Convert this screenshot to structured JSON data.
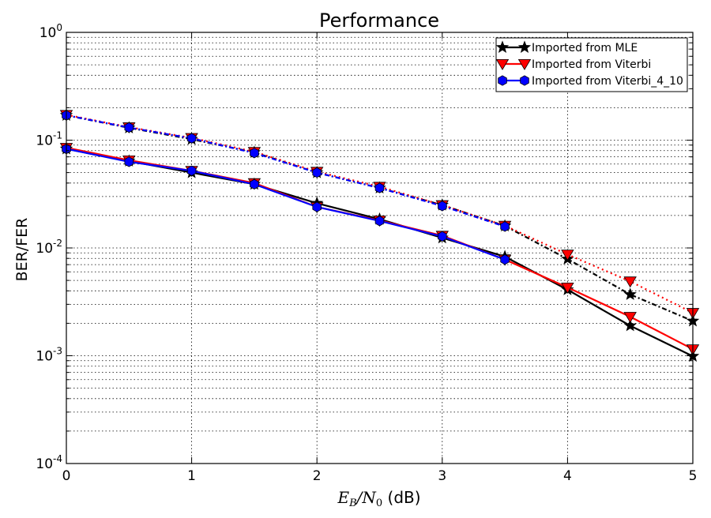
{
  "chart_data": {
    "type": "line",
    "title": "Performance",
    "ylabel": "BER/FER",
    "xlabel_parts": {
      "a": "E",
      "a_sub": "B",
      "slash": "/N",
      "b_sub": "0",
      "rest": " (dB)"
    },
    "x_ticks": [
      "0",
      "1",
      "2",
      "3",
      "4",
      "5"
    ],
    "y_ticks": [
      {
        "value": 0.0001,
        "base": "10",
        "exp": "-4"
      },
      {
        "value": 0.001,
        "base": "10",
        "exp": "-3"
      },
      {
        "value": 0.01,
        "base": "10",
        "exp": "-2"
      },
      {
        "value": 0.1,
        "base": "10",
        "exp": "-1"
      },
      {
        "value": 1,
        "base": "10",
        "exp": "0"
      }
    ],
    "xlim": [
      0,
      5
    ],
    "ylim": [
      0.0001,
      1
    ],
    "yscale": "log",
    "grid": true,
    "legend_position": "top-right",
    "x": [
      0,
      0.5,
      1,
      1.5,
      2,
      2.5,
      3,
      3.5,
      4,
      4.5,
      5
    ],
    "series": [
      {
        "name": "Imported from MLE",
        "color": "#000000",
        "marker": "star",
        "ber": [
          0.083,
          0.064,
          0.05,
          0.039,
          0.026,
          0.0185,
          0.0124,
          0.0083,
          0.0041,
          0.0019,
          0.00099
        ],
        "fer": [
          0.17,
          0.13,
          0.102,
          0.077,
          0.05,
          0.036,
          0.025,
          0.016,
          0.0079,
          0.0037,
          0.0021
        ]
      },
      {
        "name": "Imported from Viterbi",
        "color": "#ff0000",
        "marker": "triangle-down",
        "ber": [
          0.085,
          0.065,
          0.052,
          0.04,
          0.024,
          0.018,
          0.013,
          0.0078,
          0.0043,
          0.0023,
          0.00115
        ],
        "fer": [
          0.172,
          0.132,
          0.105,
          0.078,
          0.051,
          0.037,
          0.025,
          0.0161,
          0.0087,
          0.0049,
          0.0025
        ]
      },
      {
        "name": "Imported from Viterbi_4_10",
        "color": "#0000ff",
        "marker": "hexagon",
        "ber": [
          0.083,
          0.063,
          0.052,
          0.039,
          0.024,
          0.0178,
          0.0128,
          0.0078,
          null,
          null,
          null
        ],
        "fer": [
          0.17,
          0.131,
          0.104,
          0.076,
          0.05,
          0.036,
          0.0245,
          0.0158,
          null,
          null,
          null
        ]
      }
    ]
  }
}
